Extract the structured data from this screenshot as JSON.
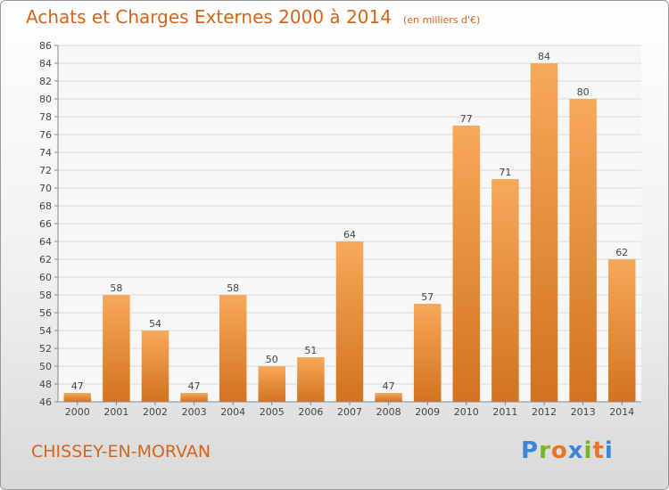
{
  "header": {
    "title": "Achats et Charges Externes 2000 à 2014",
    "subtitle": "(en milliers d'€)"
  },
  "footer": {
    "commune": "CHISSEY-EN-MORVAN",
    "logo_text": "Proxiti",
    "logo_colors": [
      "#3b86d6",
      "#7ab51d",
      "#e8742a",
      "#3b86d6",
      "#7ab51d",
      "#e8742a",
      "#3b86d6"
    ]
  },
  "chart_data": {
    "type": "bar",
    "title": "Achats et Charges Externes 2000 à 2014",
    "subtitle": "(en milliers d'€)",
    "categories": [
      "2000",
      "2001",
      "2002",
      "2003",
      "2004",
      "2005",
      "2006",
      "2007",
      "2008",
      "2009",
      "2010",
      "2011",
      "2012",
      "2013",
      "2014"
    ],
    "values": [
      47,
      58,
      54,
      47,
      58,
      50,
      51,
      64,
      47,
      57,
      77,
      71,
      84,
      80,
      62
    ],
    "ylim": [
      46,
      86
    ],
    "ytick_step": 2,
    "grid": true,
    "legend": "none",
    "bar_color_light": "#f7a95a",
    "bar_color_dark": "#d2731f",
    "grid_color": "#d8d8d8"
  }
}
